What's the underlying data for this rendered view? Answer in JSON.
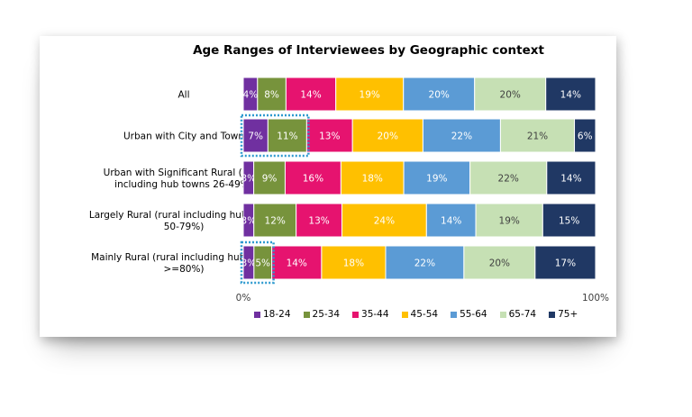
{
  "chart_data": {
    "type": "bar",
    "orientation": "horizontal",
    "stacked": "percent",
    "title": "Age Ranges of Interviewees by Geographic context",
    "categories": [
      "All",
      "Urban with City and Town",
      "Urban with Significant Rural (rural including hub towns 26-49%)",
      "Largely Rural (rural including hub towns 50-79%)",
      "Mainly Rural (rural including hub towns >=80%)"
    ],
    "category_lines": [
      [
        "All"
      ],
      [
        "Urban with City and Town"
      ],
      [
        "Urban with Significant Rural (rural",
        "including hub towns 26-49%)"
      ],
      [
        "Largely Rural (rural including hub towns",
        "50-79%)"
      ],
      [
        "Mainly Rural (rural including hub towns",
        ">=80%)"
      ]
    ],
    "series": [
      {
        "name": "18-24",
        "color": "#7030A0",
        "values": [
          4,
          7,
          3,
          3,
          3
        ],
        "labels": [
          "4%",
          "7%",
          "3%",
          "3%",
          "3%"
        ]
      },
      {
        "name": "25-34",
        "color": "#77933C",
        "values": [
          8,
          11,
          9,
          12,
          5
        ],
        "labels": [
          "8%",
          "11%",
          "9%",
          "12%",
          "5%"
        ]
      },
      {
        "name": "35-44",
        "color": "#E6136F",
        "values": [
          14,
          13,
          16,
          13,
          14
        ],
        "labels": [
          "14%",
          "13%",
          "16%",
          "13%",
          "14%"
        ]
      },
      {
        "name": "45-54",
        "color": "#FFC000",
        "values": [
          19,
          20,
          18,
          24,
          18
        ],
        "labels": [
          "19%",
          "20%",
          "18%",
          "24%",
          "18%"
        ]
      },
      {
        "name": "55-64",
        "color": "#5B9BD5",
        "values": [
          20,
          22,
          19,
          14,
          22
        ],
        "labels": [
          "20%",
          "22%",
          "19%",
          "14%",
          "22%"
        ]
      },
      {
        "name": "65-74",
        "color": "#C6E0B4",
        "values": [
          20,
          21,
          22,
          19,
          20
        ],
        "labels": [
          "20%",
          "21%",
          "22%",
          "19%",
          "20%"
        ]
      },
      {
        "name": "75+",
        "color": "#203864",
        "values": [
          14,
          6,
          14,
          15,
          17
        ],
        "labels": [
          "14%",
          "6%",
          "14%",
          "15%",
          "17%"
        ]
      }
    ],
    "xlim": [
      0,
      100
    ],
    "xticks": [
      "0%",
      "100%"
    ],
    "legend_position": "bottom",
    "grid": false,
    "highlighted": [
      {
        "category": 1,
        "series": [
          "18-24",
          "25-34"
        ]
      },
      {
        "category": 4,
        "series": [
          "18-24",
          "25-34"
        ]
      }
    ]
  }
}
